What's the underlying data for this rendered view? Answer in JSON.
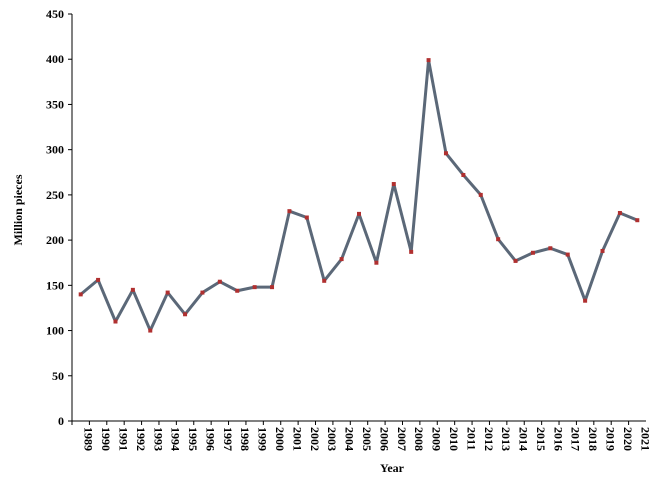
{
  "chart_data": {
    "type": "line",
    "x_label": "Year",
    "y_label": "Million pieces",
    "categories": [
      "1989",
      "1990",
      "1991",
      "1992",
      "1993",
      "1994",
      "1995",
      "1996",
      "1997",
      "1998",
      "1999",
      "2000",
      "2001",
      "2002",
      "2003",
      "2004",
      "2005",
      "2006",
      "2007",
      "2008",
      "2009",
      "2010",
      "2011",
      "2012",
      "2013",
      "2014",
      "2015",
      "2016",
      "2017",
      "2018",
      "2019",
      "2020",
      "2021"
    ],
    "series": [
      {
        "color": "#5b6878",
        "marker_color": "#b03030",
        "values": [
          140,
          156,
          110,
          145,
          100,
          142,
          118,
          142,
          154,
          144,
          148,
          148,
          232,
          225,
          155,
          179,
          229,
          175,
          262,
          187,
          399,
          296,
          272,
          250,
          201,
          177,
          186,
          191,
          184,
          133,
          188,
          230,
          222
        ]
      }
    ],
    "ylim": [
      0,
      450
    ],
    "yticks": [
      0,
      50,
      100,
      150,
      200,
      250,
      300,
      350,
      400,
      450
    ],
    "grid": false
  }
}
